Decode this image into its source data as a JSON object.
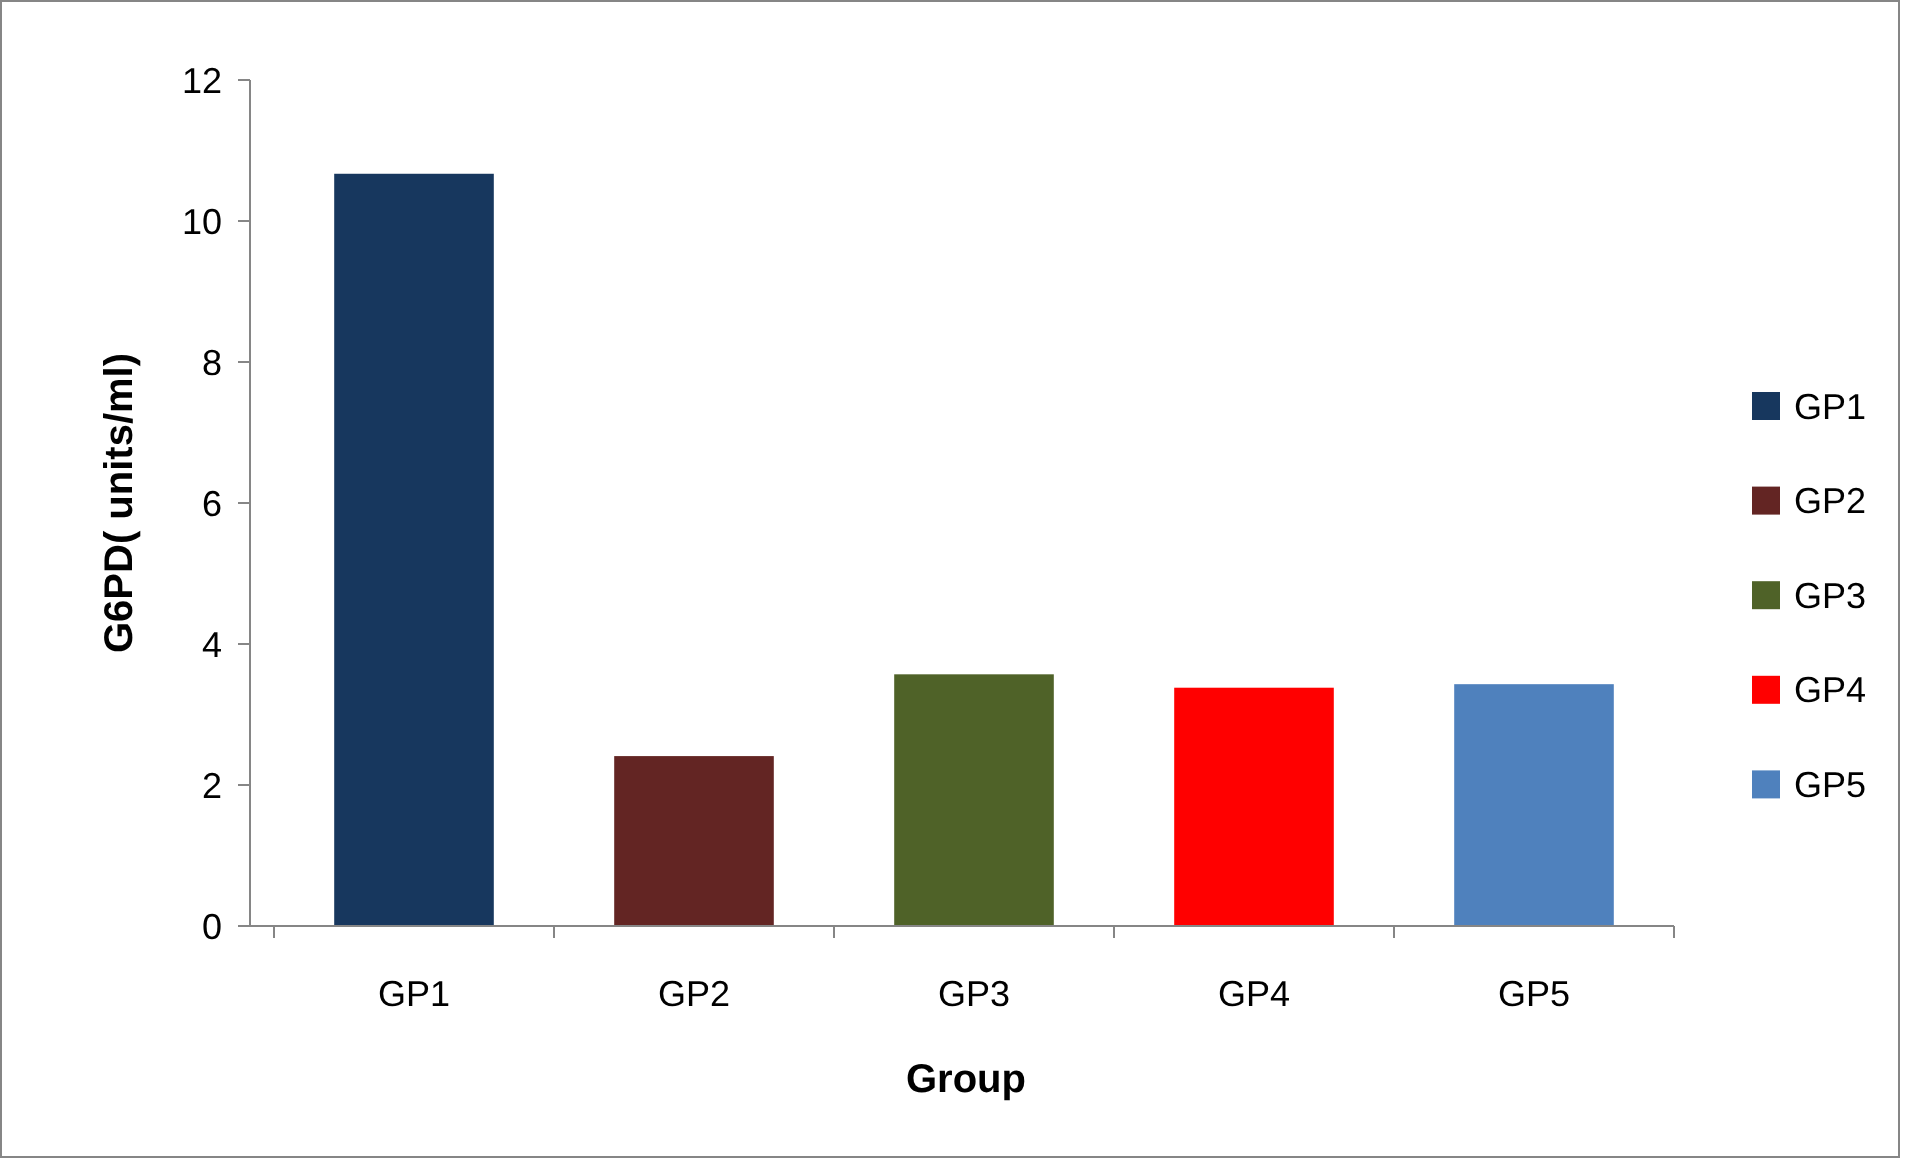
{
  "chart_data": {
    "type": "bar",
    "xlabel": "Group",
    "ylabel": "G6PD( units/ml)",
    "categories": [
      "GP1",
      "GP2",
      "GP3",
      "GP4",
      "GP5"
    ],
    "series": [
      {
        "name": "GP1",
        "color": "#17375e",
        "values": [
          10.67,
          null,
          null,
          null,
          null
        ]
      },
      {
        "name": "GP2",
        "color": "#632523",
        "values": [
          null,
          2.41,
          null,
          null,
          null
        ]
      },
      {
        "name": "GP3",
        "color": "#4f6228",
        "values": [
          null,
          null,
          3.57,
          null,
          null
        ]
      },
      {
        "name": "GP4",
        "color": "#ff0000",
        "values": [
          null,
          null,
          null,
          3.38,
          null
        ]
      },
      {
        "name": "GP5",
        "color": "#4f81bd",
        "values": [
          null,
          null,
          null,
          null,
          3.43
        ]
      }
    ],
    "ylim": [
      0,
      12
    ],
    "yticks": [
      0,
      2,
      4,
      6,
      8,
      10,
      12
    ],
    "grid": false,
    "legend": "right"
  }
}
